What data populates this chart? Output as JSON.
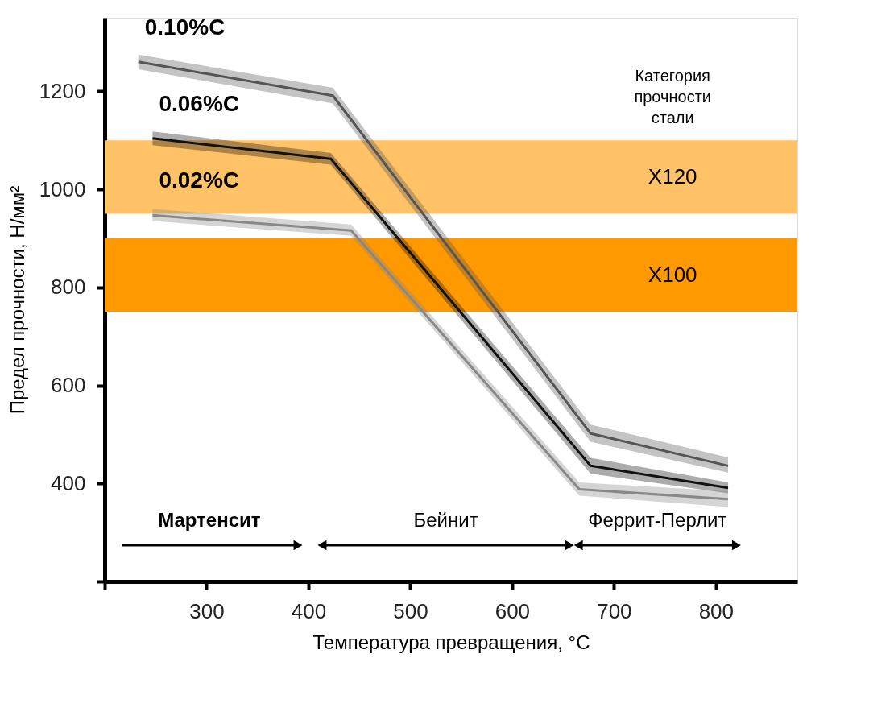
{
  "chart_data": {
    "type": "line",
    "xlabel": "Температура превращения, °C",
    "ylabel": "Предел прочности, Н/мм²",
    "xlim": [
      200,
      880
    ],
    "ylim": [
      200,
      1350
    ],
    "xticks": [
      {
        "value": 200,
        "label": null
      },
      300,
      400,
      500,
      600,
      700,
      800
    ],
    "yticks": [
      {
        "value": 200,
        "label": null
      },
      400,
      600,
      800,
      1000,
      1200
    ],
    "grid": false,
    "marker": "none",
    "line_style": "solid",
    "series": [
      {
        "name": "0.10%C",
        "color": "#555555",
        "x": [
          233,
          424,
          677,
          812
        ],
        "values": [
          1260,
          1191,
          502,
          436
        ],
        "lower": [
          1245,
          1175,
          485,
          422
        ],
        "upper": [
          1275,
          1207,
          520,
          453
        ]
      },
      {
        "name": "0.06%C",
        "color": "#111111",
        "x": [
          247,
          422,
          677,
          812
        ],
        "values": [
          1104,
          1062,
          436,
          391
        ],
        "lower": [
          1090,
          1050,
          420,
          380
        ],
        "upper": [
          1118,
          1074,
          452,
          402
        ]
      },
      {
        "name": "0.02%C",
        "color": "#888888",
        "x": [
          247,
          442,
          666,
          812
        ],
        "values": [
          947,
          916,
          388,
          368
        ],
        "lower": [
          935,
          905,
          375,
          352
        ],
        "upper": [
          960,
          928,
          402,
          384
        ]
      }
    ],
    "bands": [
      {
        "axis": "y",
        "from": 950,
        "to": 1100,
        "label": "X120",
        "color": "#ffc266"
      },
      {
        "axis": "y",
        "from": 750,
        "to": 900,
        "label": "X100",
        "color": "#ff9900"
      }
    ],
    "annotations": [
      "Категория прочности стали",
      "Мартенсит",
      "Бейнит",
      "Феррит-Перлит"
    ]
  }
}
